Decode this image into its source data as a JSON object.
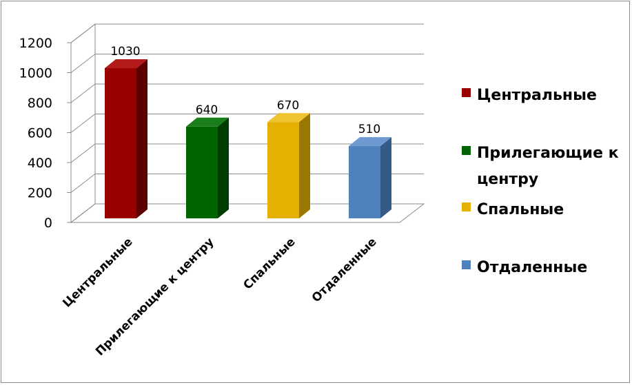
{
  "chart_data": {
    "type": "bar",
    "categories": [
      "Центральные",
      "Прилегающие к центру",
      "Спальные",
      "Отдаленные"
    ],
    "values": [
      1030,
      640,
      670,
      510
    ],
    "colors": [
      "#990000",
      "#006400",
      "#e6b000",
      "#4f81bd"
    ],
    "side_colors": [
      "#5e0000",
      "#003d00",
      "#9c7700",
      "#355a87"
    ],
    "top_colors": [
      "#b31a1a",
      "#1a7f1a",
      "#f0c430",
      "#6d9bd1"
    ],
    "data_labels": [
      "1030",
      "640",
      "670",
      "510"
    ],
    "yticks": [
      "0",
      "200",
      "400",
      "600",
      "800",
      "1000",
      "1200"
    ],
    "ylim": [
      0,
      1200
    ],
    "grid": true,
    "three_d": true,
    "legend": {
      "placement": "right",
      "items": [
        {
          "lines": [
            "Центральные"
          ],
          "color": "#990000"
        },
        {
          "lines": [
            "Прилегающие к",
            "центру"
          ],
          "color": "#006400"
        },
        {
          "lines": [
            "Спальные"
          ],
          "color": "#e6b000"
        },
        {
          "lines": [
            "Отдаленные"
          ],
          "color": "#4f81bd"
        }
      ]
    }
  }
}
